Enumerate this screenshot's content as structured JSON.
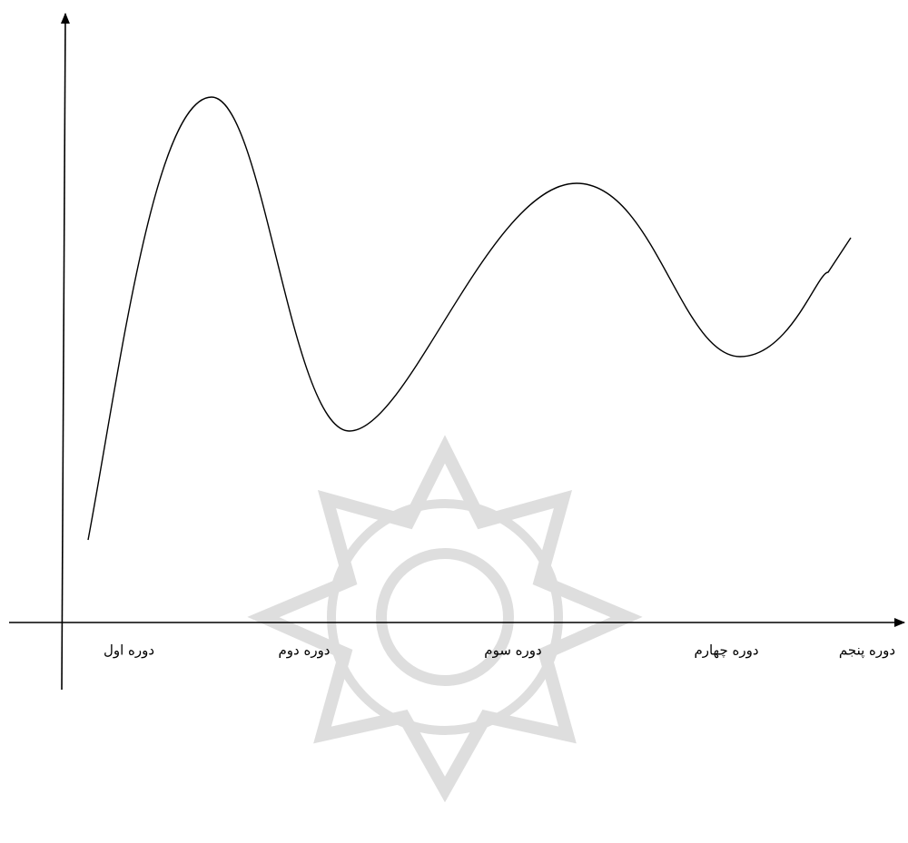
{
  "axis": {
    "labels": [
      "دوره اول",
      "دوره دوم",
      "دوره سوم",
      "دوره چهارم",
      "دوره پنجم"
    ]
  }
}
